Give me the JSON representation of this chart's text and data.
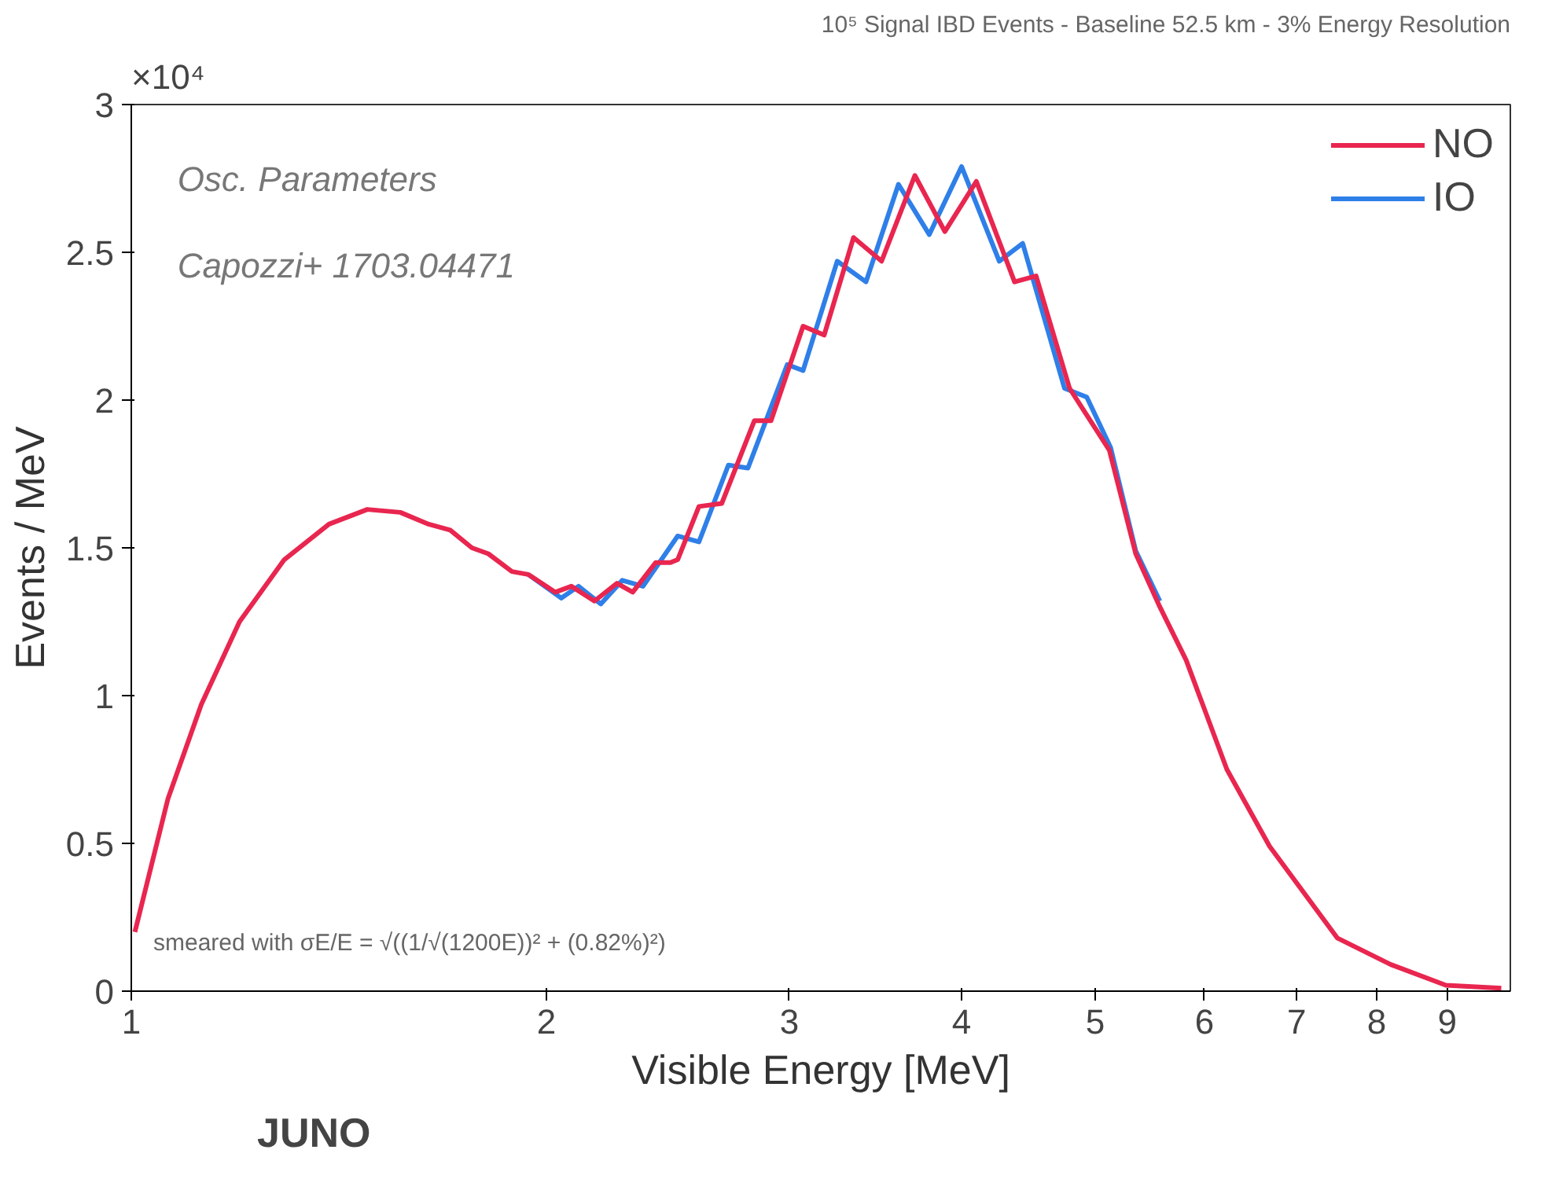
{
  "chart_data": {
    "type": "line",
    "title": "10⁵ Signal IBD Events - Baseline 52.5 km - 3% Energy Resolution",
    "xlabel": "Visible Energy [MeV]",
    "ylabel": "Events / MeV",
    "log": "x",
    "xlim": [
      1,
      10
    ],
    "xticks": [
      1,
      2,
      3,
      4,
      5,
      6,
      7,
      8,
      9
    ],
    "ylim": [
      0,
      3
    ],
    "yticks": [
      0,
      0.5,
      1,
      1.5,
      2,
      2.5,
      3
    ],
    "grid": false,
    "legend": "top right",
    "marker": "none",
    "line_style": "solid",
    "annotations": [
      "×10⁴",
      "Osc. Parameters",
      "Capozzi+ 1703.04471",
      "smeared with σE/E = √((1/√(1200E))² + (0.82%)²)",
      "JUNO"
    ],
    "series": [
      {
        "name": "NO",
        "color": "#e8264f",
        "x": [
          1.006,
          1.063,
          1.124,
          1.198,
          1.291,
          1.391,
          1.483,
          1.567,
          1.643,
          1.703,
          1.766,
          1.815,
          1.888,
          1.94,
          2.03,
          2.085,
          2.167,
          2.25,
          2.31,
          2.4,
          2.46,
          2.49,
          2.58,
          2.68,
          2.83,
          2.91,
          3.07,
          3.18,
          3.34,
          3.5,
          3.7,
          3.89,
          4.1,
          4.37,
          4.53,
          4.79,
          5.12,
          5.35,
          5.57,
          5.82,
          6.23,
          6.69,
          7.49,
          8.19,
          8.98,
          9.85
        ],
        "values": [
          0.2,
          0.65,
          0.97,
          1.25,
          1.46,
          1.58,
          1.63,
          1.62,
          1.58,
          1.56,
          1.5,
          1.48,
          1.42,
          1.41,
          1.35,
          1.37,
          1.32,
          1.38,
          1.35,
          1.45,
          1.45,
          1.46,
          1.64,
          1.65,
          1.93,
          1.93,
          2.25,
          2.22,
          2.55,
          2.47,
          2.76,
          2.57,
          2.74,
          2.4,
          2.42,
          2.04,
          1.83,
          1.48,
          1.3,
          1.12,
          0.75,
          0.49,
          0.18,
          0.09,
          0.02,
          0.01
        ]
      },
      {
        "name": "IO",
        "color": "#2f7fe8",
        "x": [
          1.94,
          2.05,
          2.11,
          2.19,
          2.27,
          2.35,
          2.49,
          2.58,
          2.71,
          2.8,
          2.99,
          3.07,
          3.25,
          3.41,
          3.6,
          3.79,
          4.0,
          4.26,
          4.43,
          4.75,
          4.93,
          5.13,
          5.35,
          5.57
        ],
        "values": [
          1.41,
          1.33,
          1.37,
          1.31,
          1.39,
          1.37,
          1.54,
          1.52,
          1.78,
          1.77,
          2.12,
          2.1,
          2.47,
          2.4,
          2.73,
          2.56,
          2.79,
          2.47,
          2.53,
          2.04,
          2.01,
          1.84,
          1.49,
          1.32
        ]
      }
    ]
  }
}
